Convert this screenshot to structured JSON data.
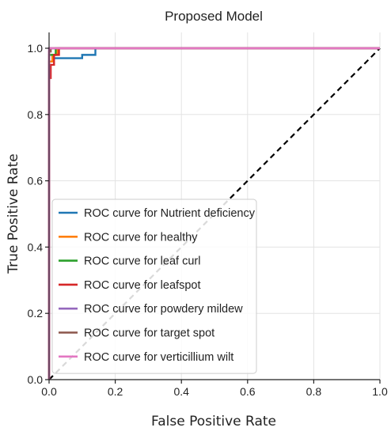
{
  "chart_data": {
    "type": "line",
    "title": "Proposed Model",
    "xlabel": "False Positive Rate",
    "ylabel": "True Positive Rate",
    "xlim": [
      0.0,
      1.0
    ],
    "ylim": [
      0.0,
      1.0
    ],
    "xticks": [
      "0.0",
      "0.2",
      "0.4",
      "0.6",
      "0.8",
      "1.0"
    ],
    "yticks": [
      "0.0",
      "0.2",
      "0.4",
      "0.6",
      "0.8",
      "1.0"
    ],
    "grid": true,
    "legend_position": "lower-left",
    "diagonal": {
      "x": [
        0,
        1
      ],
      "y": [
        0,
        1
      ],
      "style": "dashed",
      "color": "#000000"
    },
    "series": [
      {
        "name": "ROC curve for Nutrient deficiency",
        "color": "#1f77b4",
        "x": [
          0,
          0,
          0.01,
          0.01,
          0.1,
          0.1,
          0.14,
          0.14,
          1.0
        ],
        "y": [
          0,
          0.96,
          0.96,
          0.97,
          0.97,
          0.98,
          0.98,
          1.0,
          1.0
        ]
      },
      {
        "name": "ROC curve for healthy",
        "color": "#ff7f0e",
        "x": [
          0,
          0,
          0.01,
          0.01,
          0.025,
          0.025,
          1.0
        ],
        "y": [
          0,
          0.96,
          0.96,
          0.98,
          0.98,
          1.0,
          1.0
        ]
      },
      {
        "name": "ROC curve for leaf curl",
        "color": "#2ca02c",
        "x": [
          0,
          0,
          0.02,
          0.02,
          1.0
        ],
        "y": [
          0,
          0.98,
          0.98,
          1.0,
          1.0
        ]
      },
      {
        "name": "ROC curve for leafspot",
        "color": "#d62728",
        "x": [
          0,
          0,
          0.005,
          0.005,
          0.015,
          0.015,
          0.03,
          0.03,
          1.0
        ],
        "y": [
          0,
          0.91,
          0.91,
          0.95,
          0.95,
          0.98,
          0.98,
          1.0,
          1.0
        ]
      },
      {
        "name": "ROC curve for powdery mildew",
        "color": "#9467bd",
        "x": [
          0,
          0,
          1.0
        ],
        "y": [
          0,
          1.0,
          1.0
        ]
      },
      {
        "name": "ROC curve for target spot",
        "color": "#8c564b",
        "x": [
          0,
          0,
          0.005,
          0.005,
          1.0
        ],
        "y": [
          0,
          0.99,
          0.99,
          1.0,
          1.0
        ]
      },
      {
        "name": "ROC curve for verticillium wilt",
        "color": "#e377c2",
        "x": [
          0,
          0,
          1.0
        ],
        "y": [
          0,
          1.0,
          1.0
        ]
      }
    ]
  }
}
